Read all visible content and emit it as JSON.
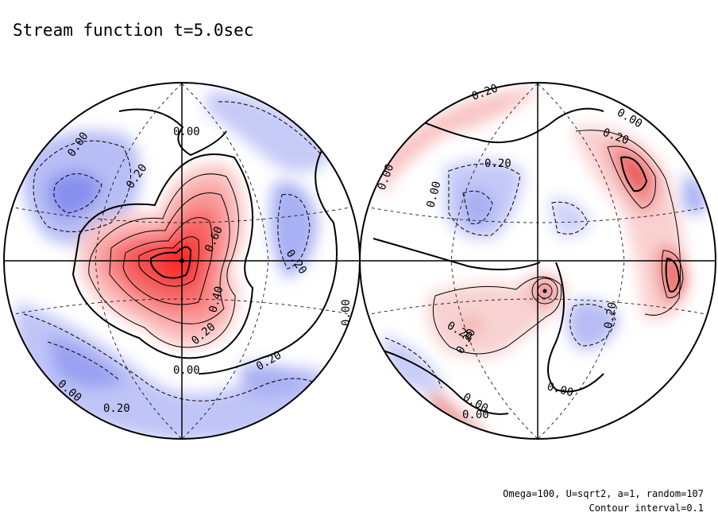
{
  "title": "Stream function t=5.0sec",
  "annotations": {
    "parameters": "Omega=100, U=sqrt2, a=1, random=107",
    "contour_interval": "Contour interval=0.1"
  },
  "colors": {
    "positive": "#ff3b3b",
    "negative": "#6e78f0",
    "background": "#ffffff",
    "line": "#000000"
  },
  "contour_labels": {
    "left": [
      "0.00",
      "0.20",
      "0.00",
      "0.60",
      "0.40",
      "0.20",
      "0.00",
      "0.20",
      "0.20",
      "0.00",
      "0.00",
      "0.20"
    ],
    "right": [
      "0.20",
      "0.00",
      "0.20",
      "0.00",
      "0.20",
      "0.00",
      "0.20",
      "0.00",
      "0.20",
      "0.20",
      "0.00",
      "0.00"
    ]
  }
}
